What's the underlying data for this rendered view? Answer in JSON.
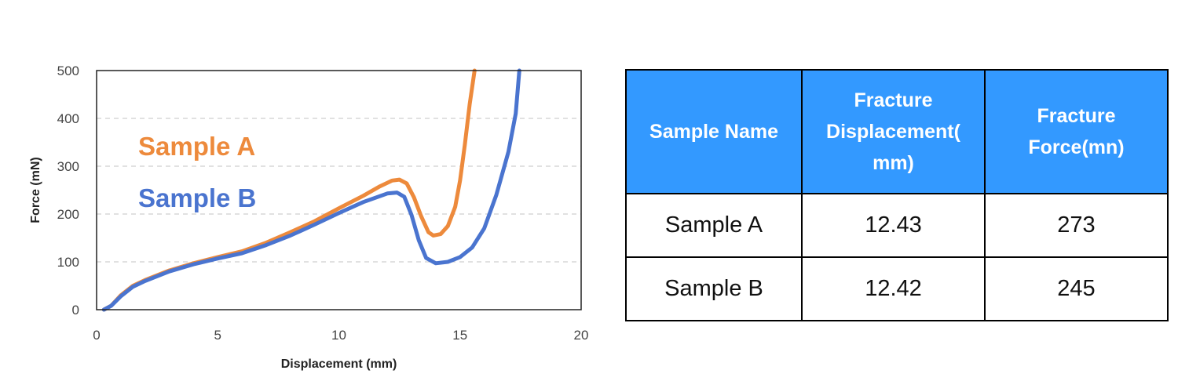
{
  "chart_data": {
    "type": "line",
    "title": "",
    "xlabel": "Displacement (mm)",
    "ylabel": "Force (mN)",
    "xlim": [
      0,
      20
    ],
    "ylim": [
      0,
      500
    ],
    "x_ticks": [
      0,
      5,
      10,
      15,
      20
    ],
    "y_ticks": [
      0,
      100,
      200,
      300,
      400,
      500
    ],
    "grid": "horizontal-dashed",
    "legend": "inline-labels-top-left",
    "series": [
      {
        "name": "Sample A",
        "color": "#ed8a3c",
        "points": [
          [
            0.3,
            0
          ],
          [
            0.6,
            8
          ],
          [
            1.0,
            30
          ],
          [
            1.5,
            50
          ],
          [
            2.0,
            62
          ],
          [
            3.0,
            82
          ],
          [
            4.0,
            97
          ],
          [
            5.0,
            110
          ],
          [
            6.0,
            122
          ],
          [
            7.0,
            140
          ],
          [
            8.0,
            162
          ],
          [
            9.0,
            185
          ],
          [
            10.0,
            212
          ],
          [
            11.0,
            238
          ],
          [
            11.7,
            258
          ],
          [
            12.2,
            270
          ],
          [
            12.5,
            272
          ],
          [
            12.8,
            264
          ],
          [
            13.1,
            235
          ],
          [
            13.4,
            195
          ],
          [
            13.7,
            162
          ],
          [
            13.9,
            155
          ],
          [
            14.2,
            158
          ],
          [
            14.5,
            175
          ],
          [
            14.8,
            215
          ],
          [
            15.0,
            270
          ],
          [
            15.2,
            345
          ],
          [
            15.4,
            430
          ],
          [
            15.6,
            500
          ]
        ]
      },
      {
        "name": "Sample B",
        "color": "#4a74cf",
        "points": [
          [
            0.3,
            0
          ],
          [
            0.6,
            8
          ],
          [
            1.0,
            28
          ],
          [
            1.5,
            48
          ],
          [
            2.0,
            60
          ],
          [
            3.0,
            80
          ],
          [
            4.0,
            95
          ],
          [
            5.0,
            107
          ],
          [
            6.0,
            118
          ],
          [
            7.0,
            135
          ],
          [
            8.0,
            155
          ],
          [
            9.0,
            178
          ],
          [
            10.0,
            202
          ],
          [
            11.0,
            225
          ],
          [
            12.0,
            243
          ],
          [
            12.4,
            245
          ],
          [
            12.7,
            236
          ],
          [
            13.0,
            198
          ],
          [
            13.3,
            145
          ],
          [
            13.6,
            108
          ],
          [
            14.0,
            97
          ],
          [
            14.5,
            100
          ],
          [
            15.0,
            110
          ],
          [
            15.5,
            130
          ],
          [
            16.0,
            170
          ],
          [
            16.5,
            240
          ],
          [
            17.0,
            330
          ],
          [
            17.3,
            410
          ],
          [
            17.45,
            500
          ]
        ]
      }
    ]
  },
  "table": {
    "headers": [
      "Sample Name",
      "Fracture Displacement( mm)",
      "Fracture Force(mn)"
    ],
    "rows": [
      {
        "name": "Sample A",
        "displacement": "12.43",
        "force": "273"
      },
      {
        "name": "Sample B",
        "displacement": "12.42",
        "force": "245"
      }
    ],
    "header_color": "#3399ff"
  }
}
